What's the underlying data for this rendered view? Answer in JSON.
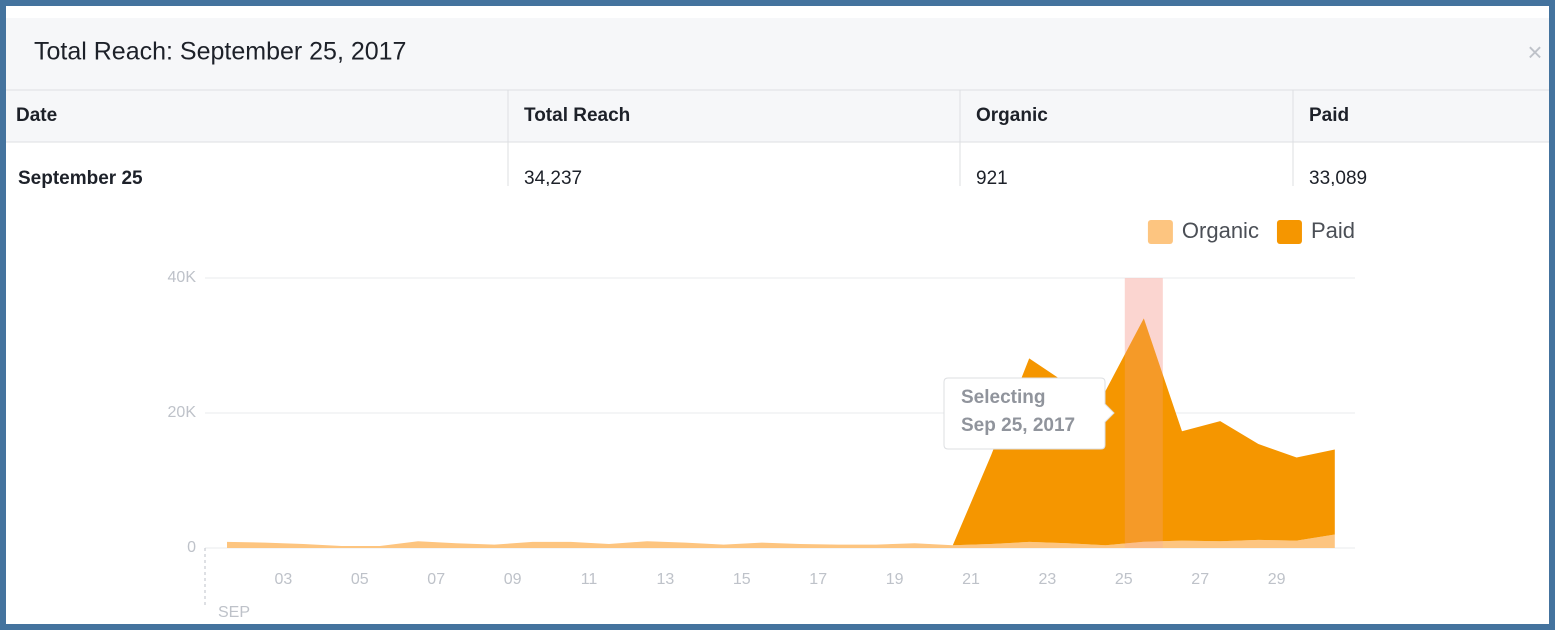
{
  "header": {
    "title": "Total Reach: September 25, 2017",
    "close": "×"
  },
  "table": {
    "columns": [
      "Date",
      "Total Reach",
      "Organic",
      "Paid"
    ],
    "rows": [
      [
        "September 25",
        "34,237",
        "921",
        "33,089"
      ]
    ]
  },
  "chart_data": {
    "type": "area",
    "stacked": true,
    "legend": "top-right",
    "month_label": "SEP",
    "categories": [
      null,
      null,
      "03",
      null,
      "05",
      null,
      "07",
      null,
      "09",
      null,
      "11",
      null,
      "13",
      null,
      "15",
      null,
      "17",
      null,
      "19",
      null,
      "21",
      null,
      "23",
      null,
      "25",
      null,
      "27",
      null,
      "29",
      null
    ],
    "series": [
      {
        "name": "Organic",
        "color": "#fdc580",
        "values": [
          900,
          800,
          600,
          300,
          300,
          1000,
          700,
          500,
          900,
          900,
          600,
          1000,
          800,
          500,
          800,
          600,
          500,
          500,
          700,
          400,
          600,
          900,
          700,
          400,
          921,
          1100,
          1000,
          1200,
          1100,
          2000
        ]
      },
      {
        "name": "Paid",
        "color": "#f59600",
        "values": [
          0,
          0,
          0,
          0,
          0,
          0,
          0,
          0,
          0,
          0,
          0,
          0,
          0,
          0,
          0,
          0,
          0,
          0,
          0,
          0,
          13100,
          27200,
          23600,
          22900,
          33089,
          16200,
          17800,
          14200,
          12300,
          12600
        ]
      }
    ],
    "ylim": [
      0,
      40000
    ],
    "yticks": [
      0,
      {
        "value": 20000,
        "label": "20K"
      },
      {
        "value": 40000,
        "label": "40K"
      }
    ],
    "grid": true,
    "selected_index": 24,
    "tooltip": [
      "Selecting",
      "Sep 25, 2017"
    ]
  }
}
